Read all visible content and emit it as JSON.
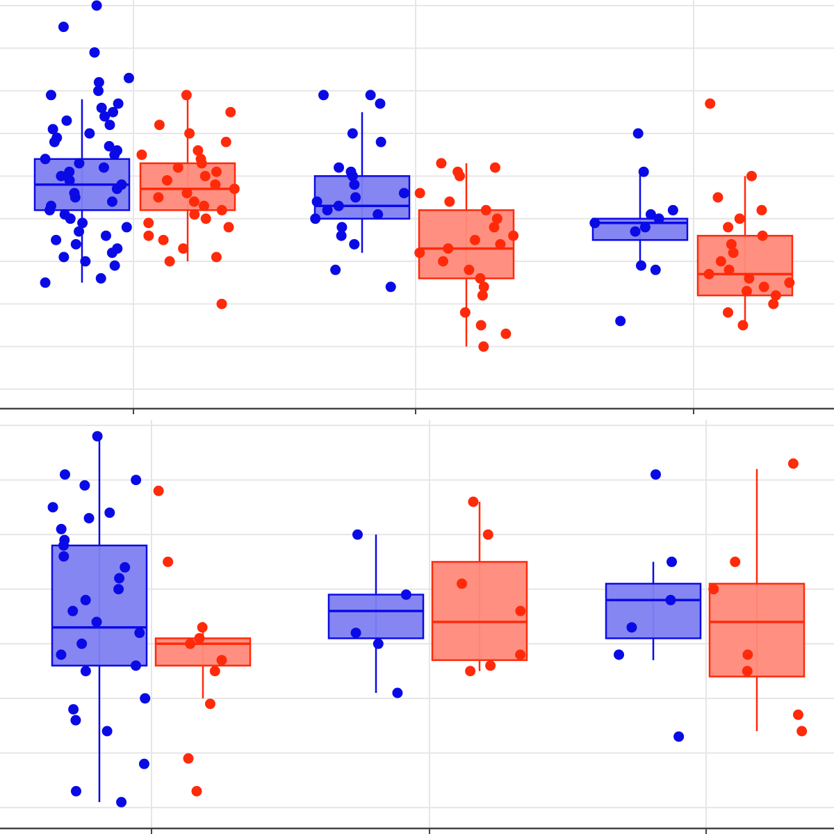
{
  "colors": {
    "group_a": "#0a0ae6",
    "group_a_fill": "#7f80f2",
    "group_b": "#ff2a0a",
    "group_b_fill": "#ff8a7a",
    "grid": "#e6e6e6",
    "axis": "#444444"
  },
  "chart_data": [
    {
      "type": "box",
      "title": "",
      "xlabel": "",
      "ylabel": "",
      "ylim": [
        0,
        9
      ],
      "grid": true,
      "categories": [
        "",
        "",
        ""
      ],
      "series": [
        {
          "name": "",
          "color_key": "group_a",
          "boxes": [
            {
              "category": 0,
              "whisker_low": 2.5,
              "q1": 4.2,
              "median": 4.8,
              "q3": 5.4,
              "whisker_high": 6.8,
              "points": [
                9.0,
                8.5,
                7.9,
                7.3,
                7.2,
                7.0,
                6.9,
                6.7,
                6.6,
                6.5,
                6.4,
                6.3,
                6.2,
                6.1,
                6.0,
                5.9,
                5.8,
                5.7,
                5.6,
                5.5,
                5.4,
                5.3,
                5.2,
                5.1,
                5.0,
                4.9,
                4.8,
                4.7,
                4.6,
                4.5,
                4.4,
                4.3,
                4.2,
                4.1,
                4.0,
                3.9,
                3.8,
                3.7,
                3.6,
                3.5,
                3.4,
                3.3,
                3.2,
                3.1,
                3.0,
                2.9,
                2.6,
                2.5
              ]
            },
            {
              "category": 1,
              "whisker_low": 3.2,
              "q1": 4.0,
              "median": 4.3,
              "q3": 5.0,
              "whisker_high": 6.5,
              "points": [
                6.9,
                6.9,
                6.7,
                6.0,
                5.8,
                5.2,
                5.1,
                5.0,
                4.8,
                4.6,
                4.5,
                4.4,
                4.3,
                4.2,
                4.1,
                4.0,
                3.8,
                3.6,
                3.4,
                2.8,
                2.4
              ]
            },
            {
              "category": 2,
              "whisker_low": 2.8,
              "q1": 3.5,
              "median": 3.9,
              "q3": 4.0,
              "whisker_high": 5.1,
              "points": [
                6.0,
                5.1,
                4.2,
                4.1,
                4.0,
                3.9,
                3.8,
                3.7,
                2.9,
                2.8,
                1.6
              ]
            }
          ]
        },
        {
          "name": "",
          "color_key": "group_b",
          "boxes": [
            {
              "category": 0,
              "whisker_low": 3.0,
              "q1": 4.2,
              "median": 4.7,
              "q3": 5.3,
              "whisker_high": 6.8,
              "points": [
                6.9,
                6.5,
                6.2,
                6.0,
                5.8,
                5.6,
                5.5,
                5.4,
                5.3,
                5.2,
                5.1,
                5.0,
                4.9,
                4.8,
                4.7,
                4.6,
                4.5,
                4.4,
                4.3,
                4.2,
                4.1,
                4.0,
                3.9,
                3.8,
                3.6,
                3.5,
                3.3,
                3.1,
                3.0,
                2.0
              ]
            },
            {
              "category": 1,
              "whisker_low": 1.0,
              "q1": 2.6,
              "median": 3.3,
              "q3": 4.2,
              "whisker_high": 5.3,
              "points": [
                5.3,
                5.2,
                5.1,
                5.0,
                4.6,
                4.4,
                4.2,
                4.0,
                3.8,
                3.6,
                3.5,
                3.4,
                3.3,
                3.2,
                3.0,
                2.8,
                2.6,
                2.4,
                2.2,
                1.8,
                1.5,
                1.3,
                1.0
              ]
            },
            {
              "category": 2,
              "whisker_low": 1.5,
              "q1": 2.2,
              "median": 2.7,
              "q3": 3.6,
              "whisker_high": 5.0,
              "points": [
                6.7,
                5.0,
                4.5,
                4.2,
                4.0,
                3.8,
                3.6,
                3.4,
                3.2,
                3.0,
                2.8,
                2.7,
                2.6,
                2.5,
                2.4,
                2.3,
                2.2,
                2.0,
                1.8,
                1.5
              ]
            }
          ]
        }
      ]
    },
    {
      "type": "box",
      "title": "",
      "xlabel": "",
      "ylabel": "",
      "ylim": [
        0,
        7
      ],
      "grid": true,
      "categories": [
        "",
        "",
        ""
      ],
      "series": [
        {
          "name": "",
          "color_key": "group_a",
          "boxes": [
            {
              "category": 0,
              "whisker_low": 0.1,
              "q1": 2.6,
              "median": 3.3,
              "q3": 4.8,
              "whisker_high": 6.8,
              "points": [
                6.8,
                6.1,
                6.0,
                5.9,
                5.5,
                5.4,
                5.3,
                5.1,
                4.9,
                4.8,
                4.6,
                4.4,
                4.2,
                4.0,
                3.8,
                3.6,
                3.4,
                3.2,
                3.0,
                2.8,
                2.6,
                2.5,
                2.0,
                1.8,
                1.6,
                1.4,
                0.8,
                0.3,
                0.1
              ]
            },
            {
              "category": 1,
              "whisker_low": 2.1,
              "q1": 3.1,
              "median": 3.6,
              "q3": 3.9,
              "whisker_high": 5.0,
              "points": [
                5.0,
                3.9,
                3.2,
                3.0,
                2.1
              ]
            },
            {
              "category": 2,
              "whisker_low": 2.7,
              "q1": 3.1,
              "median": 3.8,
              "q3": 4.1,
              "whisker_high": 4.5,
              "points": [
                6.1,
                4.5,
                3.8,
                3.3,
                2.8,
                1.3
              ]
            }
          ]
        },
        {
          "name": "",
          "color_key": "group_b",
          "boxes": [
            {
              "category": 0,
              "whisker_low": 2.0,
              "q1": 2.6,
              "median": 3.0,
              "q3": 3.1,
              "whisker_high": 3.4,
              "points": [
                5.8,
                4.5,
                3.3,
                3.1,
                3.0,
                2.7,
                2.5,
                1.9,
                0.9,
                0.3
              ]
            },
            {
              "category": 1,
              "whisker_low": 2.5,
              "q1": 2.7,
              "median": 3.4,
              "q3": 4.5,
              "whisker_high": 5.6,
              "points": [
                5.6,
                5.0,
                4.1,
                3.6,
                2.8,
                2.6,
                2.5
              ]
            },
            {
              "category": 2,
              "whisker_low": 1.4,
              "q1": 2.4,
              "median": 3.4,
              "q3": 4.1,
              "whisker_high": 6.2,
              "points": [
                6.3,
                4.5,
                4.0,
                2.8,
                2.5,
                1.7,
                1.4
              ]
            }
          ]
        }
      ]
    }
  ]
}
